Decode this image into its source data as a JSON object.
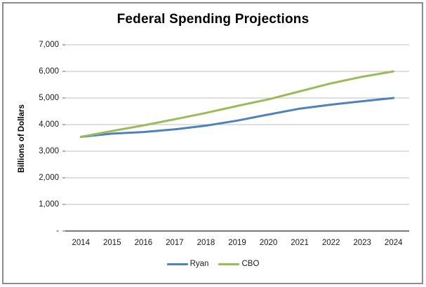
{
  "frame": {
    "border_color": "#8C8C8C",
    "background": "#FFFFFF"
  },
  "chart_data": {
    "type": "line",
    "title": "Federal Spending Projections",
    "xlabel": "",
    "ylabel": "Billions of Dollars",
    "categories": [
      "2014",
      "2015",
      "2016",
      "2017",
      "2018",
      "2019",
      "2020",
      "2021",
      "2022",
      "2023",
      "2024"
    ],
    "series": [
      {
        "name": "Ryan",
        "color": "#4F81BD",
        "values": [
          3540,
          3660,
          3720,
          3820,
          3960,
          4150,
          4380,
          4600,
          4750,
          4880,
          5000
        ]
      },
      {
        "name": "CBO",
        "color": "#9BBB59",
        "values": [
          3540,
          3760,
          3970,
          4200,
          4440,
          4700,
          4950,
          5250,
          5550,
          5800,
          6000
        ]
      }
    ],
    "ylim": [
      0,
      7000
    ],
    "ytick_interval": 1000,
    "yticks": [
      {
        "value": 7000,
        "label": "7,000"
      },
      {
        "value": 6000,
        "label": "6,000"
      },
      {
        "value": 5000,
        "label": "5,000"
      },
      {
        "value": 4000,
        "label": "4,000"
      },
      {
        "value": 3000,
        "label": "3,000"
      },
      {
        "value": 2000,
        "label": "2,000"
      },
      {
        "value": 1000,
        "label": "1,000"
      },
      {
        "value": 0,
        "label": "-"
      }
    ],
    "grid": "horizontal",
    "legend_position": "bottom",
    "colors": {
      "gridline": "#BFBFBF",
      "axis_line": "#4D4D4D",
      "tick_mark": "#7F7F7F",
      "text": "#1A1A1A"
    }
  }
}
